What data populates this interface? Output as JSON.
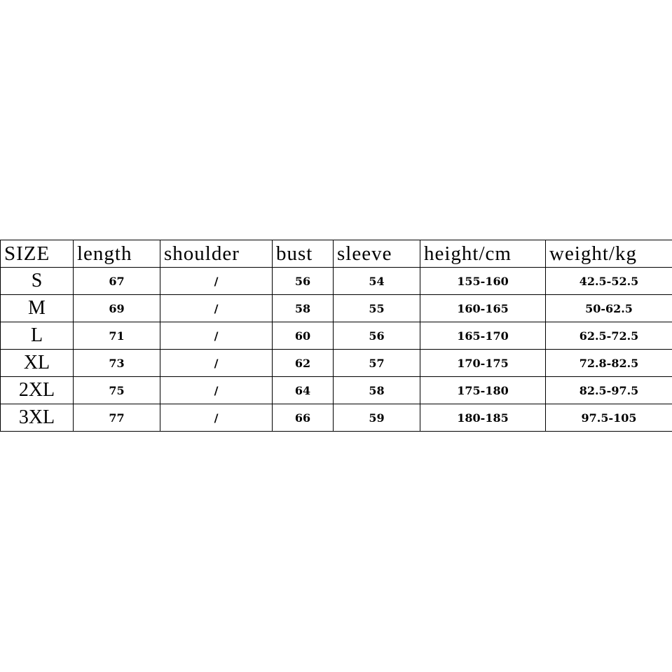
{
  "headers": [
    "SIZE",
    "length",
    "shoulder",
    "bust",
    "sleeve",
    "height/cm",
    "weight/kg"
  ],
  "rows": [
    {
      "size": "S",
      "length": "67",
      "shoulder": "/",
      "bust": "56",
      "sleeve": "54",
      "height": "155-160",
      "weight": "42.5-52.5"
    },
    {
      "size": "M",
      "length": "69",
      "shoulder": "/",
      "bust": "58",
      "sleeve": "55",
      "height": "160-165",
      "weight": "50-62.5"
    },
    {
      "size": "L",
      "length": "71",
      "shoulder": "/",
      "bust": "60",
      "sleeve": "56",
      "height": "165-170",
      "weight": "62.5-72.5"
    },
    {
      "size": "XL",
      "length": "73",
      "shoulder": "/",
      "bust": "62",
      "sleeve": "57",
      "height": "170-175",
      "weight": "72.8-82.5"
    },
    {
      "size": "2XL",
      "length": "75",
      "shoulder": "/",
      "bust": "64",
      "sleeve": "58",
      "height": "175-180",
      "weight": "82.5-97.5"
    },
    {
      "size": "3XL",
      "length": "77",
      "shoulder": "/",
      "bust": "66",
      "sleeve": "59",
      "height": "180-185",
      "weight": "97.5-105"
    }
  ]
}
